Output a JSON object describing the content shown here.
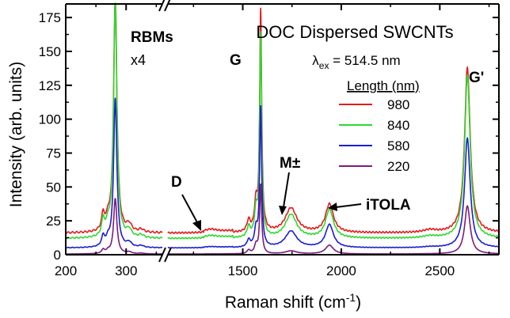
{
  "chart_data": {
    "type": "line",
    "title": "DOC Dispersed SWCNTs",
    "subtitle": {
      "prefix": "λ",
      "sub": "ex",
      "suffix": " = 514.5 nm"
    },
    "xlabel": {
      "main": "Raman shift (cm",
      "sup": "-1",
      "end": ")"
    },
    "ylabel": "Intensity (arb. units)",
    "ylim": [
      0,
      185
    ],
    "yticks": [
      "0",
      "25",
      "50",
      "75",
      "100",
      "125",
      "150",
      "175"
    ],
    "x_segments": [
      {
        "range": [
          200,
          360
        ],
        "ticks": [
          "200",
          "300"
        ],
        "tick_values": [
          200,
          300
        ]
      },
      {
        "range": [
          1120,
          2800
        ],
        "ticks": [
          "1500",
          "2000",
          "2500"
        ],
        "tick_values": [
          1500,
          2000,
          2500
        ]
      }
    ],
    "legend": {
      "title": "Length (nm)",
      "placement": "right"
    },
    "annotations": {
      "rbm": "RBMs",
      "rbm_factor": "x4",
      "g": "G",
      "d": "D",
      "m": "M±",
      "itola": "iTOLA",
      "g_prime": "G'"
    },
    "series": [
      {
        "name": "980",
        "color": "#e41a1c",
        "baseline": 16,
        "rbm_peak": 177,
        "g_peak": 163,
        "gp_peak": 138,
        "itola_peak": 37,
        "m_peak": 27
      },
      {
        "name": "840",
        "color": "#2ed82e",
        "baseline": 12,
        "rbm_peak": 175,
        "g_peak": 150,
        "gp_peak": 132,
        "itola_peak": 33,
        "m_peak": 24
      },
      {
        "name": "580",
        "color": "#1c1cd6",
        "baseline": 5,
        "rbm_peak": 110,
        "g_peak": 103,
        "gp_peak": 86,
        "itola_peak": 22,
        "m_peak": 15
      },
      {
        "name": "220",
        "color": "#7b1c7b",
        "baseline": 0.5,
        "rbm_peak": 41,
        "g_peak": 51,
        "gp_peak": 36,
        "itola_peak": 7,
        "m_peak": 4
      }
    ]
  }
}
